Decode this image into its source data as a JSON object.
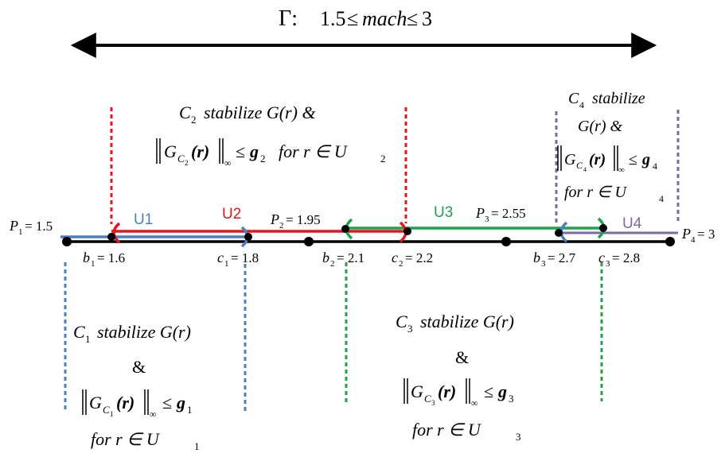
{
  "range": {
    "gamma": "Γ:",
    "low": "1.5",
    "leq1": "≤",
    "var": "mach",
    "leq2": "≤",
    "high": "3"
  },
  "points": {
    "P1": {
      "sym": "P",
      "sub": "1",
      "val": "= 1.5"
    },
    "P2": {
      "sym": "P",
      "sub": "2",
      "val": "= 1.95"
    },
    "P3": {
      "sym": "P",
      "sub": "3",
      "val": "= 2.55"
    },
    "P4": {
      "sym": "P",
      "sub": "4",
      "val": "= 3"
    },
    "b1": {
      "sym": "b",
      "sub": "1",
      "val": "= 1.6"
    },
    "c1": {
      "sym": "c",
      "sub": "1",
      "val": "= 1.8"
    },
    "b2": {
      "sym": "b",
      "sub": "2",
      "val": "= 2.1"
    },
    "c2": {
      "sym": "c",
      "sub": "2",
      "val": "= 2.2"
    },
    "b3": {
      "sym": "b",
      "sub": "3",
      "val": "= 2.7"
    },
    "c3": {
      "sym": "c",
      "sub": "3",
      "val": "= 2.8"
    }
  },
  "intervals": {
    "U1": "U1",
    "U2": "U2",
    "U3": "U3",
    "U4": "U4"
  },
  "conditions": {
    "C1": {
      "line1": {
        "sym": "C",
        "sub": "1",
        "text": "stabilize G(r)"
      },
      "line2": "&",
      "line3": {
        "G": "G",
        "C": "C",
        "sub": "1",
        "r": "(r)",
        "inf": "∞",
        "leq": "≤",
        "g": "g",
        "gsub": "1"
      },
      "line4": {
        "text": "for r ∈ U",
        "sub": "1"
      }
    },
    "C2": {
      "line1": {
        "sym": "C",
        "sub": "2",
        "text": "stabilize G(r) &"
      },
      "line2": {
        "G": "G",
        "C": "C",
        "sub": "2",
        "r": "(r)",
        "inf": "∞",
        "leq": "≤",
        "g": "g",
        "gsub": "2",
        "tail": "for r ∈ U",
        "tailsub": "2"
      }
    },
    "C3": {
      "line1": {
        "sym": "C",
        "sub": "3",
        "text": "stabilize G(r)"
      },
      "line2": "&",
      "line3": {
        "G": "G",
        "C": "C",
        "sub": "3",
        "r": "(r)",
        "inf": "∞",
        "leq": "≤",
        "g": "g",
        "gsub": "3"
      },
      "line4": {
        "text": "for r ∈ U",
        "sub": "3"
      }
    },
    "C4": {
      "line1": {
        "sym": "C",
        "sub": "4",
        "text": "stabilize"
      },
      "line2": "G(r) &",
      "line3": {
        "G": "G",
        "C": "C",
        "sub": "4",
        "r": "(r)",
        "inf": "∞",
        "leq": "≤",
        "g": "g",
        "gsub": "4"
      },
      "line4": {
        "text": "for r ∈ U",
        "sub": "4"
      }
    }
  },
  "colors": {
    "blue": "#4a7fc1",
    "red": "#e8141c",
    "green": "#1fa34a",
    "purple": "#7b6aa6",
    "black": "#000000"
  }
}
